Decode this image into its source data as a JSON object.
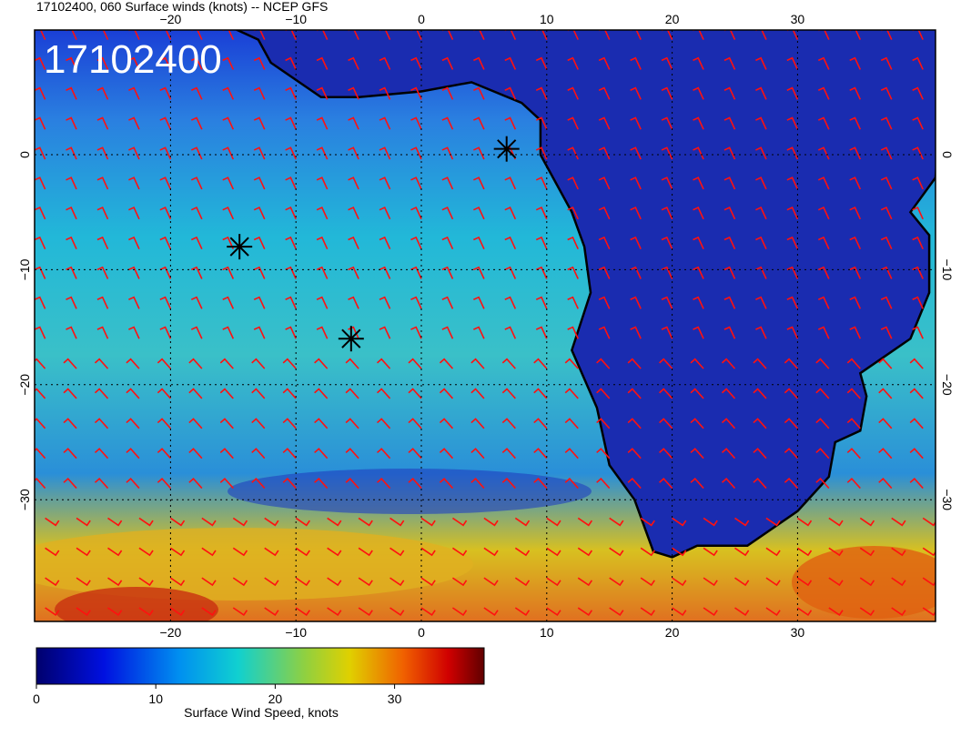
{
  "header": {
    "title": "17102400, 060 Surface winds (knots) -- NCEP GFS",
    "stamp": "17102400"
  },
  "map": {
    "lon_ticks": [
      {
        "value": -20,
        "label": "−20"
      },
      {
        "value": -10,
        "label": "−10"
      },
      {
        "value": 0,
        "label": "0"
      },
      {
        "value": 10,
        "label": "10"
      },
      {
        "value": 20,
        "label": "20"
      },
      {
        "value": 30,
        "label": "30"
      }
    ],
    "lat_ticks": [
      {
        "value": 0,
        "label": "0"
      },
      {
        "value": -10,
        "label": "−10"
      },
      {
        "value": -20,
        "label": "−20"
      },
      {
        "value": -30,
        "label": "−30"
      }
    ]
  },
  "colorbar": {
    "label": "Surface Wind Speed, knots",
    "range": [
      0,
      37.5
    ],
    "ticks": [
      0,
      10,
      20,
      30
    ]
  }
}
